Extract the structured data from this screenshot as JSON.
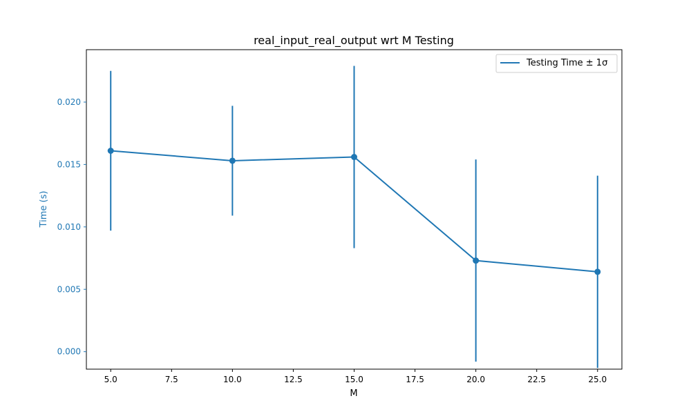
{
  "chart_data": {
    "type": "line",
    "title": "real_input_real_output wrt M Testing",
    "xlabel": "M",
    "ylabel": "Time (s)",
    "xlim": [
      4.0,
      26.0
    ],
    "ylim": [
      -0.0014,
      0.0242
    ],
    "x_ticks": [
      5.0,
      7.5,
      10.0,
      12.5,
      15.0,
      17.5,
      20.0,
      22.5,
      25.0
    ],
    "x_tick_labels": [
      "5.0",
      "7.5",
      "10.0",
      "12.5",
      "15.0",
      "17.5",
      "20.0",
      "22.5",
      "25.0"
    ],
    "y_ticks": [
      0.0,
      0.005,
      0.01,
      0.015,
      0.02
    ],
    "y_tick_labels": [
      "0.000",
      "0.005",
      "0.010",
      "0.015",
      "0.020"
    ],
    "grid": false,
    "legend_position": "top-right",
    "series": [
      {
        "name": "Testing Time ± 1σ",
        "color": "#1f77b4",
        "x": [
          5,
          10,
          15,
          20,
          25
        ],
        "y": [
          0.0161,
          0.0153,
          0.0156,
          0.0073,
          0.0064
        ],
        "error": [
          0.0064,
          0.0044,
          0.0073,
          0.0081,
          0.0077
        ]
      }
    ],
    "ylabel_color": "#1f77b4",
    "ytick_color": "#1f77b4"
  }
}
